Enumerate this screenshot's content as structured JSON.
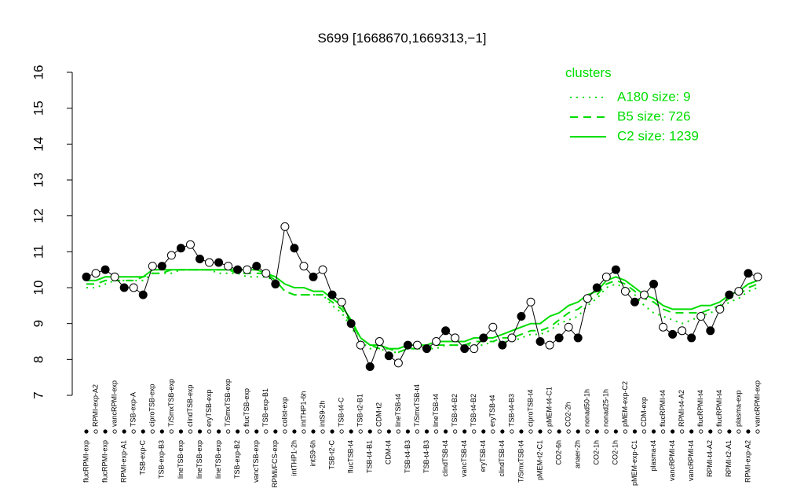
{
  "chart_data": {
    "type": "line",
    "title": "S699 [1668670,1669313,−1]",
    "categories": [
      "flucRPMI-exp",
      "RPMI-exp-A2",
      "flucRPMI-exp",
      "vancRPMI-exp",
      "RPMI-exp-A1",
      "TSB-exp-A",
      "TSB-exp-C",
      "ciproTSB-exp",
      "TSB-exp-B3",
      "T/SmxTSB-exp",
      "lineTSB-exp",
      "clindTSB-exp",
      "lineTSB-exp",
      "eryTSB-exp",
      "lineTSB-exp",
      "T/SmxTSB-exp",
      "TSB-exp-B2",
      "flucTSB-exp",
      "vancTSB-exp",
      "TSB-exp-B1",
      "RPMI/FCS-exp",
      "colist-exp",
      "intTHP1-2h",
      "intTHP1-6h",
      "intS9-6h",
      "intS9-2h",
      "TSB-t2-C",
      "TSB-t4-C",
      "flucTSB-t4",
      "TSB-t2-B1",
      "TSB-t4-B1",
      "CDM-t2",
      "CDM-t4",
      "lineTSB-t4",
      "TSB-t4-B3",
      "T/SmxTSB-t4",
      "TSB-t4-B3",
      "lineTSB-t4",
      "clindTSB-t4",
      "TSB-t4-B2",
      "vancTSB-t4",
      "TSB-t4-B2",
      "eryTSB-t4",
      "eryTSB-t4",
      "clindTSB-t4",
      "TSB-t4-B3",
      "T/SmxTSB-t4",
      "ciproTSB-t4",
      "pMEM-t2-C1",
      "pMEM-t4-C1",
      "CO2-6h",
      "CO2-2h",
      "anaer-2h",
      "nonad50-1h",
      "CO2-1h",
      "nonad25-1h",
      "CO2-1h",
      "pMEM-exp-C2",
      "pMEM-exp-C1",
      "CDM-exp",
      "plasma-t4",
      "flucRPMI-t4",
      "vancRPMI-t4",
      "RPMI-t4-A2",
      "vancRPMI-t4",
      "flucRPMI-t4",
      "RPMI-t4-A2",
      "flucRPMI-t4",
      "RPMI-t2-A1",
      "plasma-exp",
      "RPMI-exp-A2",
      "vancRPMI-exp"
    ],
    "values": [
      10.3,
      10.4,
      10.5,
      10.3,
      10.0,
      10.0,
      9.8,
      10.6,
      10.6,
      10.9,
      11.1,
      11.2,
      10.8,
      10.7,
      10.7,
      10.6,
      10.5,
      10.5,
      10.6,
      10.4,
      10.1,
      11.7,
      11.1,
      10.6,
      10.3,
      10.5,
      9.8,
      9.6,
      9.0,
      8.4,
      7.8,
      8.5,
      8.1,
      7.9,
      8.4,
      8.4,
      8.3,
      8.5,
      8.8,
      8.6,
      8.3,
      8.3,
      8.6,
      8.9,
      8.4,
      8.6,
      9.2,
      9.6,
      8.5,
      8.4,
      8.6,
      8.9,
      8.6,
      9.7,
      10.0,
      10.3,
      10.5,
      9.9,
      9.6,
      9.8,
      10.1,
      8.9,
      8.7,
      8.8,
      8.6,
      9.2,
      8.8,
      9.4,
      9.8,
      9.9,
      10.4,
      10.3
    ],
    "color": "#000000",
    "legend_title": "clusters",
    "series": [
      {
        "name": "A180 size: 9",
        "color": "#00dd00",
        "style": "dotted",
        "values": [
          10.0,
          10.0,
          10.1,
          10.2,
          10.2,
          10.2,
          10.2,
          10.4,
          10.4,
          10.4,
          10.5,
          10.5,
          10.5,
          10.5,
          10.4,
          10.4,
          10.4,
          10.3,
          10.3,
          10.3,
          10.2,
          9.9,
          9.8,
          9.8,
          9.8,
          9.8,
          9.5,
          9.3,
          8.9,
          8.5,
          8.3,
          8.3,
          8.2,
          8.2,
          8.3,
          8.3,
          8.3,
          8.3,
          8.4,
          8.4,
          8.4,
          8.4,
          8.4,
          8.5,
          8.5,
          8.5,
          8.6,
          8.7,
          8.7,
          8.8,
          9.0,
          9.1,
          9.2,
          9.5,
          9.7,
          10.0,
          10.1,
          10.0,
          9.8,
          9.5,
          9.3,
          9.2,
          9.1,
          9.0,
          9.1,
          9.2,
          9.3,
          9.4,
          9.6,
          9.7,
          9.9,
          10.0
        ]
      },
      {
        "name": "B5 size: 726",
        "color": "#00dd00",
        "style": "dashed",
        "values": [
          10.1,
          10.1,
          10.2,
          10.2,
          10.2,
          10.2,
          10.3,
          10.4,
          10.4,
          10.5,
          10.5,
          10.5,
          10.5,
          10.5,
          10.5,
          10.5,
          10.4,
          10.4,
          10.4,
          10.4,
          10.2,
          9.9,
          9.8,
          9.8,
          9.8,
          9.8,
          9.6,
          9.4,
          9.0,
          8.6,
          8.4,
          8.3,
          8.3,
          8.2,
          8.3,
          8.3,
          8.3,
          8.4,
          8.4,
          8.4,
          8.4,
          8.5,
          8.5,
          8.5,
          8.6,
          8.6,
          8.7,
          8.8,
          8.8,
          8.9,
          9.1,
          9.3,
          9.4,
          9.6,
          9.8,
          10.1,
          10.2,
          10.1,
          9.9,
          9.7,
          9.6,
          9.4,
          9.3,
          9.3,
          9.3,
          9.3,
          9.4,
          9.5,
          9.7,
          9.8,
          10.0,
          10.1
        ]
      },
      {
        "name": "C2 size: 1239",
        "color": "#00dd00",
        "style": "solid",
        "values": [
          10.2,
          10.2,
          10.3,
          10.3,
          10.3,
          10.3,
          10.3,
          10.5,
          10.5,
          10.5,
          10.5,
          10.5,
          10.5,
          10.5,
          10.5,
          10.5,
          10.5,
          10.5,
          10.5,
          10.4,
          10.3,
          10.1,
          10.0,
          10.0,
          9.9,
          9.9,
          9.7,
          9.5,
          9.1,
          8.6,
          8.4,
          8.4,
          8.3,
          8.3,
          8.4,
          8.4,
          8.4,
          8.5,
          8.5,
          8.5,
          8.5,
          8.6,
          8.6,
          8.6,
          8.7,
          8.8,
          8.9,
          9.0,
          9.0,
          9.2,
          9.3,
          9.5,
          9.6,
          9.8,
          9.9,
          10.2,
          10.3,
          10.2,
          10.0,
          9.8,
          9.7,
          9.5,
          9.4,
          9.4,
          9.4,
          9.5,
          9.5,
          9.6,
          9.8,
          9.9,
          10.1,
          10.2
        ]
      }
    ],
    "ylim": [
      7,
      16
    ],
    "yticks": [
      7,
      8,
      9,
      10,
      11,
      12,
      13,
      14,
      15,
      16
    ],
    "legend": "top-right"
  }
}
